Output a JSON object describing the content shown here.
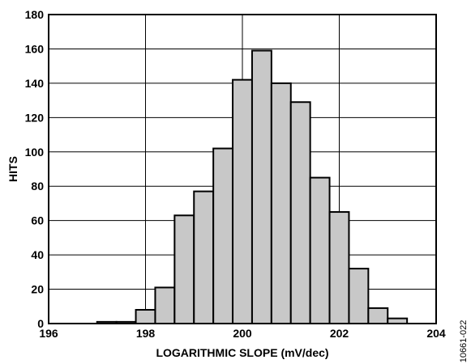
{
  "chart_data": {
    "type": "bar",
    "xlabel": "LOGARITHMIC SLOPE (mV/dec)",
    "ylabel": "HITS",
    "xlim": [
      196,
      204
    ],
    "ylim": [
      0,
      180
    ],
    "xticks": [
      "196",
      "198",
      "200",
      "202",
      "204"
    ],
    "yticks": [
      "0",
      "20",
      "40",
      "60",
      "80",
      "100",
      "120",
      "140",
      "160",
      "180"
    ],
    "grid": true,
    "bin_width": 0.4,
    "bins": [
      {
        "x": 197.2,
        "value": 1
      },
      {
        "x": 197.6,
        "value": 1
      },
      {
        "x": 198.0,
        "value": 8
      },
      {
        "x": 198.4,
        "value": 21
      },
      {
        "x": 198.8,
        "value": 63
      },
      {
        "x": 199.2,
        "value": 77
      },
      {
        "x": 199.6,
        "value": 102
      },
      {
        "x": 200.0,
        "value": 142
      },
      {
        "x": 200.4,
        "value": 159
      },
      {
        "x": 200.8,
        "value": 140
      },
      {
        "x": 201.2,
        "value": 129
      },
      {
        "x": 201.6,
        "value": 85
      },
      {
        "x": 202.0,
        "value": 65
      },
      {
        "x": 202.4,
        "value": 32
      },
      {
        "x": 202.8,
        "value": 9
      },
      {
        "x": 203.2,
        "value": 3
      }
    ],
    "bar_color": "#c8c8c8"
  },
  "figure_code": "10661-022"
}
